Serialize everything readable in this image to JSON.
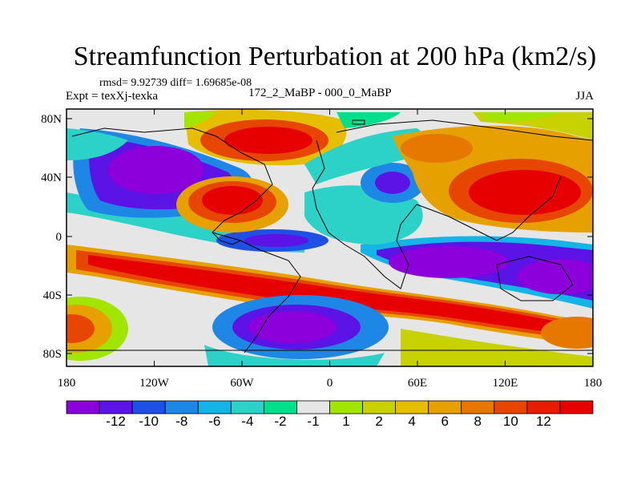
{
  "title": "Streamfunction Perturbation at 200 hPa (km2/s)",
  "stats_text": "rmsd= 9.92739 diff= 1.69685e-08",
  "expt_text": "Expt = texXj-texka",
  "label_text": "172_2_MaBP - 000_0_MaBP",
  "season_text": "JJA",
  "map": {
    "lat_ticks": [
      "80N",
      "40N",
      "0",
      "40S",
      "80S"
    ],
    "lon_ticks": [
      "180",
      "120W",
      "60W",
      "0",
      "60E",
      "120E",
      "180"
    ]
  },
  "colorbar": {
    "colors": [
      "#8c00dc",
      "#5b13e6",
      "#1e50e6",
      "#1e87e6",
      "#14b4e6",
      "#2cd2c8",
      "#00e08c",
      "#e6e6e6",
      "#a0e600",
      "#c8d200",
      "#e6be00",
      "#e6a000",
      "#e67800",
      "#e64600",
      "#e61e00",
      "#e60000"
    ],
    "labels": [
      "-12",
      "-10",
      "-8",
      "-6",
      "-4",
      "-2",
      "-1",
      "1",
      "2",
      "4",
      "6",
      "8",
      "10",
      "12"
    ]
  }
}
